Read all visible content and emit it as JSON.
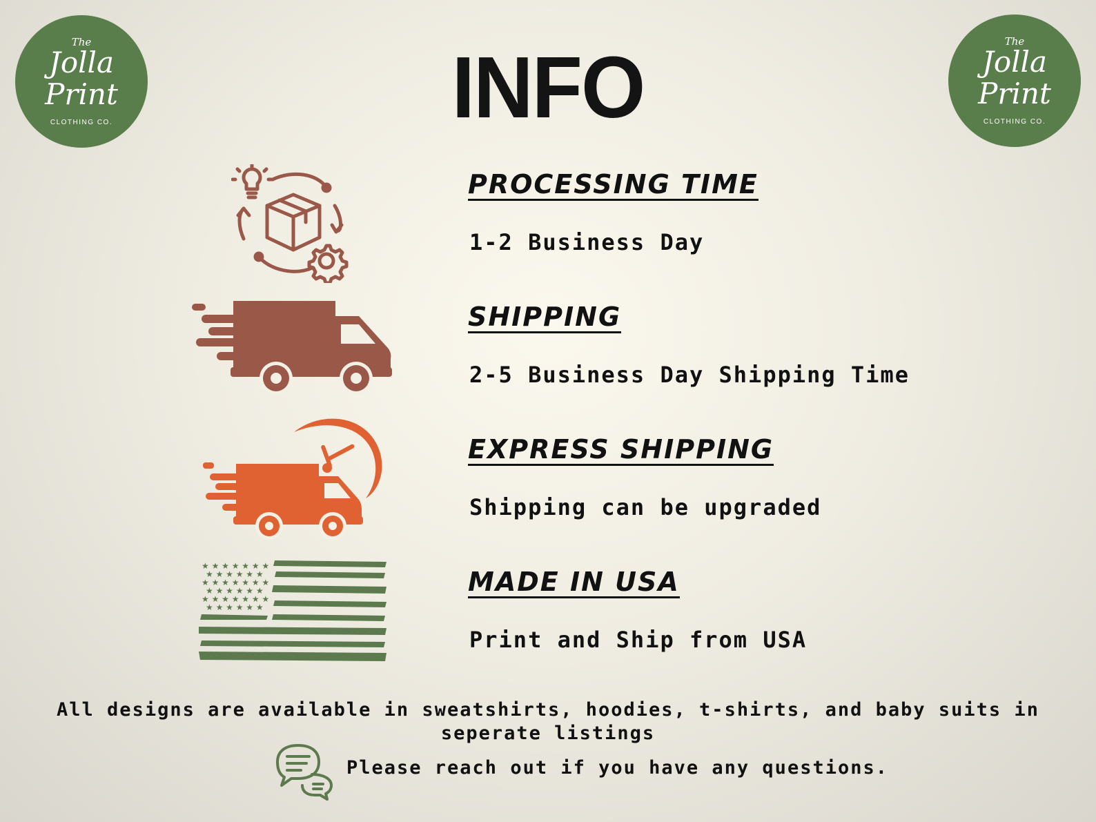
{
  "logo": {
    "the": "The",
    "line1": "Jolla",
    "line2": "Print",
    "tagline": "CLOTHING CO."
  },
  "title": "INFO",
  "sections": [
    {
      "heading": "PROCESSING TIME",
      "detail": "1-2 Business Day",
      "icon": "processing-cycle-icon"
    },
    {
      "heading": "SHIPPING",
      "detail": "2-5 Business Day Shipping Time",
      "icon": "delivery-truck-icon"
    },
    {
      "heading": "EXPRESS SHIPPING",
      "detail": "Shipping can be upgraded",
      "icon": "express-truck-icon"
    },
    {
      "heading": "MADE IN USA",
      "detail": "Print and Ship from USA",
      "icon": "usa-flag-icon"
    }
  ],
  "footer_note": "All designs are available in sweatshirts, hoodies, t-shirts, and baby suits in seperate listings",
  "contact_note": "Please reach out if you have any questions.",
  "colors": {
    "logo_green": "#5a7d4c",
    "brown": "#9a5848",
    "orange": "#e06132",
    "flag_green": "#5d7a4e",
    "background": "#f3f0e6"
  }
}
